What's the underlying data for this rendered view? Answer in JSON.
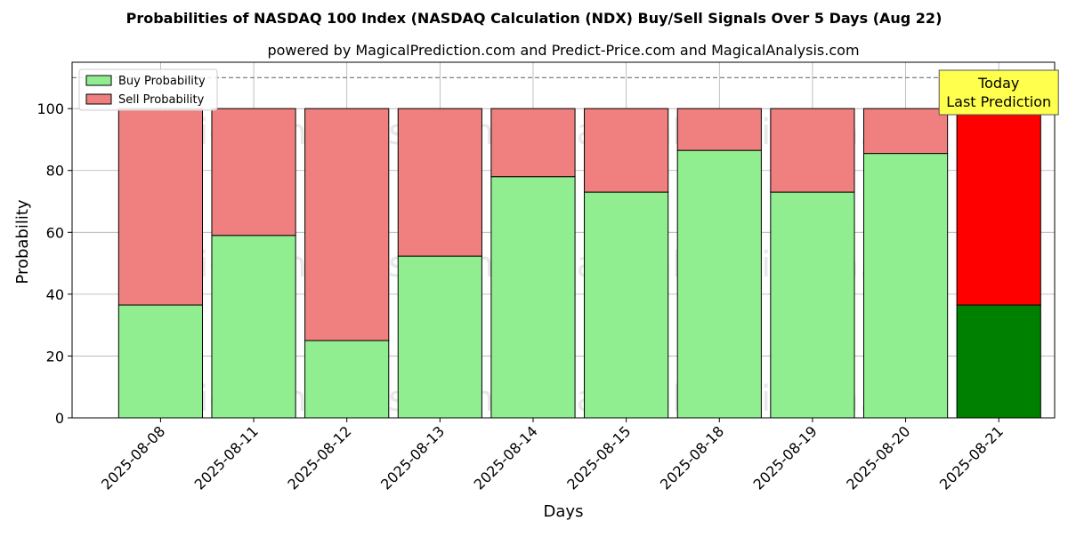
{
  "chart_data": {
    "type": "bar",
    "stacked": true,
    "title": "Probabilities of NASDAQ 100 Index (NASDAQ Calculation (NDX) Buy/Sell Signals Over 5 Days (Aug 22)",
    "subtitle": "powered by MagicalPrediction.com and Predict-Price.com and MagicalAnalysis.com",
    "xlabel": "Days",
    "ylabel": "Probability",
    "ylim": [
      0,
      115
    ],
    "yticks": [
      0,
      20,
      40,
      60,
      80,
      100
    ],
    "reference_line": 110,
    "grid": true,
    "legend_position": "top-left",
    "categories": [
      "2025-08-08",
      "2025-08-11",
      "2025-08-12",
      "2025-08-13",
      "2025-08-14",
      "2025-08-15",
      "2025-08-18",
      "2025-08-19",
      "2025-08-20",
      "2025-08-21"
    ],
    "series": [
      {
        "name": "Buy Probability",
        "values": [
          36.5,
          59,
          25,
          52.3,
          78,
          73,
          86.5,
          73,
          85.5,
          36.5
        ],
        "color": "#90ee90",
        "highlight_color": "#008000"
      },
      {
        "name": "Sell Probability",
        "values": [
          63.5,
          41,
          75,
          47.7,
          22,
          27,
          13.5,
          27,
          14.5,
          63.5
        ],
        "color": "#f08080",
        "highlight_color": "#ff0000"
      }
    ],
    "highlight_index": 9,
    "annotation": {
      "line1": "Today",
      "line2": "Last Prediction",
      "background": "#ffff4d"
    },
    "watermarks": [
      "MagicalAnalysis.com",
      "MagicalPrediction.com"
    ]
  }
}
